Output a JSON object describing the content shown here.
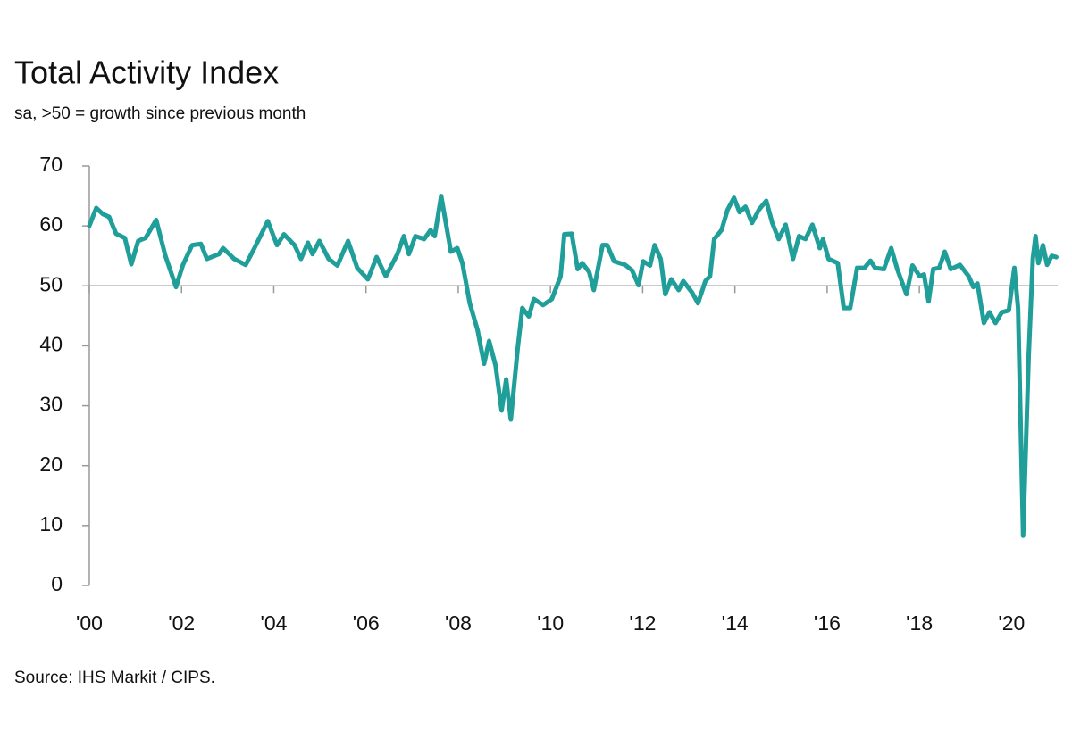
{
  "chart_data": {
    "type": "line",
    "title": "Total Activity Index",
    "subtitle": "sa, >50 = growth since previous month",
    "source": "Source: IHS Markit / CIPS.",
    "xlim": [
      2000,
      2021
    ],
    "ylim": [
      0,
      70
    ],
    "yticks": [
      0,
      10,
      20,
      30,
      40,
      50,
      60,
      70
    ],
    "xticks": [
      {
        "value": 2000,
        "label": "'00"
      },
      {
        "value": 2002,
        "label": "'02"
      },
      {
        "value": 2004,
        "label": "'04"
      },
      {
        "value": 2006,
        "label": "'06"
      },
      {
        "value": 2008,
        "label": "'08"
      },
      {
        "value": 2010,
        "label": "'10"
      },
      {
        "value": 2012,
        "label": "'12"
      },
      {
        "value": 2014,
        "label": "'14"
      },
      {
        "value": 2016,
        "label": "'16"
      },
      {
        "value": 2018,
        "label": "'18"
      },
      {
        "value": 2020,
        "label": "'20"
      }
    ],
    "reference_line": 50,
    "grid": false,
    "series": [
      {
        "name": "Total Activity Index",
        "color": "#1f9e9a",
        "x": [
          2000.0,
          2000.15,
          2000.29,
          2000.43,
          2000.58,
          2000.77,
          2000.91,
          2001.06,
          2001.22,
          2001.45,
          2001.65,
          2001.88,
          2002.03,
          2002.23,
          2002.42,
          2002.55,
          2002.81,
          2002.9,
          2003.14,
          2003.39,
          2003.58,
          2003.87,
          2004.07,
          2004.22,
          2004.45,
          2004.59,
          2004.74,
          2004.84,
          2004.99,
          2005.19,
          2005.38,
          2005.61,
          2005.81,
          2006.04,
          2006.23,
          2006.43,
          2006.68,
          2006.82,
          2006.93,
          2007.07,
          2007.26,
          2007.4,
          2007.49,
          2007.63,
          2007.84,
          2007.98,
          2008.09,
          2008.25,
          2008.42,
          2008.56,
          2008.67,
          2008.81,
          2008.94,
          2009.04,
          2009.14,
          2009.29,
          2009.39,
          2009.53,
          2009.64,
          2009.84,
          2010.03,
          2010.22,
          2010.3,
          2010.46,
          2010.59,
          2010.69,
          2010.84,
          2010.94,
          2011.13,
          2011.23,
          2011.38,
          2011.62,
          2011.77,
          2011.91,
          2012.01,
          2012.16,
          2012.26,
          2012.39,
          2012.49,
          2012.62,
          2012.78,
          2012.88,
          2013.07,
          2013.2,
          2013.36,
          2013.46,
          2013.55,
          2013.71,
          2013.84,
          2013.98,
          2014.1,
          2014.23,
          2014.37,
          2014.52,
          2014.68,
          2014.81,
          2014.95,
          2015.1,
          2015.26,
          2015.39,
          2015.53,
          2015.68,
          2015.84,
          2015.91,
          2016.03,
          2016.23,
          2016.36,
          2016.5,
          2016.65,
          2016.81,
          2016.94,
          2017.04,
          2017.23,
          2017.39,
          2017.52,
          2017.72,
          2017.85,
          2018.01,
          2018.1,
          2018.2,
          2018.3,
          2018.43,
          2018.55,
          2018.68,
          2018.88,
          2019.07,
          2019.17,
          2019.26,
          2019.4,
          2019.52,
          2019.65,
          2019.79,
          2019.94,
          2020.06,
          2020.14,
          2020.25,
          2020.37,
          2020.46,
          2020.52,
          2020.58,
          2020.68,
          2020.77,
          2020.87,
          2020.97
        ],
        "values": [
          60,
          63,
          62,
          61.5,
          58.7,
          58,
          53.6,
          57.5,
          58,
          61,
          55,
          49.8,
          53.5,
          56.8,
          57,
          54.5,
          55.3,
          56.3,
          54.5,
          53.5,
          56.3,
          60.8,
          56.8,
          58.6,
          56.8,
          54.5,
          57.2,
          55.3,
          57.5,
          54.5,
          53.4,
          57.5,
          53,
          51.1,
          54.8,
          51.6,
          55.3,
          58.3,
          55.3,
          58.3,
          57.8,
          59.3,
          58.3,
          65,
          55.7,
          56.3,
          53.8,
          47.1,
          42.6,
          37,
          40.8,
          36.7,
          29.2,
          34.4,
          27.7,
          39.6,
          46.3,
          44.9,
          47.8,
          46.8,
          47.8,
          51.6,
          58.6,
          58.7,
          52.8,
          53.8,
          52.3,
          49.3,
          56.8,
          56.8,
          54.1,
          53.5,
          52.6,
          50.1,
          54.1,
          53.4,
          56.8,
          54.5,
          48.6,
          51.1,
          49.3,
          50.8,
          48.9,
          47.1,
          50.8,
          51.6,
          57.8,
          59.3,
          62.7,
          64.7,
          62.3,
          63.2,
          60.5,
          62.7,
          64.2,
          60.5,
          57.8,
          60.2,
          54.5,
          58.3,
          57.8,
          60.2,
          56.3,
          57.8,
          54.5,
          53.8,
          46.3,
          46.3,
          53,
          53,
          54.2,
          53,
          52.8,
          56.3,
          52.8,
          48.6,
          53.4,
          51.6,
          51.9,
          47.4,
          52.8,
          53,
          55.7,
          52.8,
          53.5,
          51.6,
          49.8,
          50.4,
          43.8,
          45.6,
          43.8,
          45.6,
          45.9,
          53,
          46.3,
          8.3,
          38.2,
          54.5,
          58.3,
          53.8,
          56.8,
          53.5,
          55,
          54.8
        ]
      }
    ]
  }
}
